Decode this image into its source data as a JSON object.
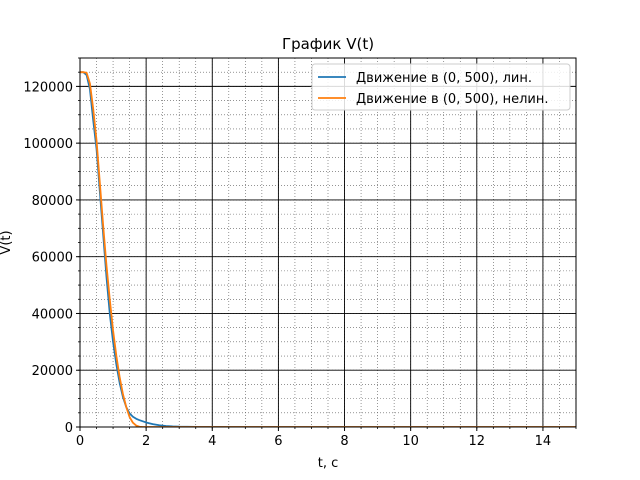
{
  "chart_data": {
    "type": "line",
    "title": "График V(t)",
    "xlabel": "t, c",
    "ylabel": "V(t)",
    "xlim": [
      0,
      15
    ],
    "ylim": [
      0,
      130000
    ],
    "x_ticks": [
      0,
      2,
      4,
      6,
      8,
      10,
      12,
      14
    ],
    "y_ticks": [
      0,
      20000,
      40000,
      60000,
      80000,
      100000,
      120000
    ],
    "grid": {
      "major": true,
      "minor": true
    },
    "legend_position": "top-right",
    "series": [
      {
        "name": "Движение в (0, 500), лин.",
        "color": "#1f77b4",
        "x": [
          0,
          0.1,
          0.2,
          0.3,
          0.4,
          0.5,
          0.6,
          0.7,
          0.8,
          0.9,
          1.0,
          1.1,
          1.2,
          1.3,
          1.4,
          1.5,
          1.6,
          1.7,
          1.8,
          1.9,
          2.0,
          2.2,
          2.4,
          2.6,
          2.8,
          3.0,
          3.5,
          4,
          6,
          8,
          10,
          12,
          14,
          15
        ],
        "y": [
          125000,
          125000,
          124000,
          119000,
          108000,
          98000,
          83000,
          68000,
          53000,
          40000,
          30000,
          22000,
          15500,
          10500,
          7000,
          4800,
          3600,
          2900,
          2400,
          2000,
          1600,
          1000,
          600,
          350,
          200,
          120,
          50,
          20,
          0,
          0,
          0,
          0,
          0,
          0
        ]
      },
      {
        "name": "Движение в (0, 500), нелин.",
        "color": "#ff7f0e",
        "x": [
          0,
          0.1,
          0.2,
          0.3,
          0.4,
          0.5,
          0.6,
          0.7,
          0.8,
          0.9,
          1.0,
          1.1,
          1.2,
          1.3,
          1.4,
          1.5,
          1.6,
          1.7,
          1.8,
          1.9,
          2.0,
          2.5,
          3,
          4,
          6,
          8,
          10,
          12,
          14,
          15
        ],
        "y": [
          125000,
          125000,
          124800,
          121000,
          112000,
          101000,
          86000,
          71000,
          57000,
          45000,
          34000,
          25000,
          17500,
          11500,
          7000,
          3500,
          1500,
          500,
          100,
          0,
          0,
          0,
          0,
          0,
          0,
          0,
          0,
          0,
          0,
          0
        ]
      }
    ]
  }
}
